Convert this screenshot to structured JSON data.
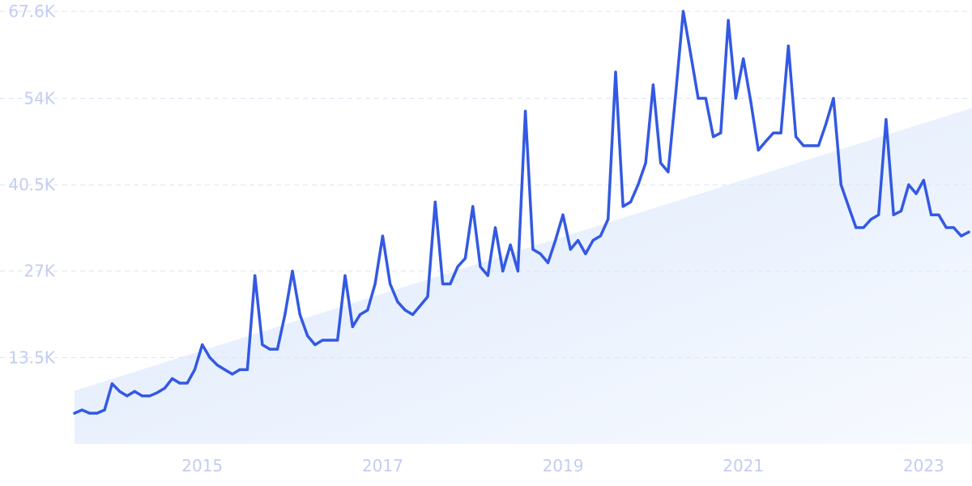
{
  "colors": {
    "line": "#3359e3",
    "grid": "#dde3f4",
    "tick_text": "#c3cdf0",
    "trend_fill_top": "#dce8fb",
    "trend_fill_bottom": "#f7faff"
  },
  "chart_data": {
    "type": "line",
    "title": "",
    "xlabel": "",
    "ylabel": "",
    "grid": "horizontal dashed",
    "legend": "none",
    "y_ticks": [
      "13.5K",
      "27K",
      "40.5K",
      "54K",
      "67.6K"
    ],
    "y_tick_values": [
      13500,
      27000,
      40500,
      54000,
      67600
    ],
    "ylim": [
      0,
      67600
    ],
    "x_ticks": [
      "2015",
      "2017",
      "2019",
      "2021",
      "2023"
    ],
    "x_tick_values": [
      "2015-01",
      "2017-01",
      "2019-01",
      "2021-01",
      "2023-01"
    ],
    "xlim": [
      "2013-08",
      "2023-05"
    ],
    "trend": {
      "start": [
        "2013-08",
        8300
      ],
      "end": [
        "2023-05",
        52500
      ]
    },
    "series": [
      {
        "values": [
          [
            "2013-08",
            4800
          ],
          [
            "2013-09",
            5300
          ],
          [
            "2013-10",
            4800
          ],
          [
            "2013-11",
            4800
          ],
          [
            "2013-12",
            5300
          ],
          [
            "2014-01",
            9400
          ],
          [
            "2014-02",
            8200
          ],
          [
            "2014-03",
            7500
          ],
          [
            "2014-04",
            8200
          ],
          [
            "2014-05",
            7500
          ],
          [
            "2014-06",
            7500
          ],
          [
            "2014-07",
            8000
          ],
          [
            "2014-08",
            8700
          ],
          [
            "2014-09",
            10200
          ],
          [
            "2014-10",
            9500
          ],
          [
            "2014-11",
            9500
          ],
          [
            "2014-12",
            11600
          ],
          [
            "2015-01",
            15500
          ],
          [
            "2015-02",
            13500
          ],
          [
            "2015-03",
            12300
          ],
          [
            "2015-04",
            11600
          ],
          [
            "2015-05",
            10900
          ],
          [
            "2015-06",
            11600
          ],
          [
            "2015-07",
            11600
          ],
          [
            "2015-08",
            26300
          ],
          [
            "2015-09",
            15500
          ],
          [
            "2015-10",
            14800
          ],
          [
            "2015-11",
            14800
          ],
          [
            "2015-12",
            20200
          ],
          [
            "2016-01",
            27000
          ],
          [
            "2016-02",
            20200
          ],
          [
            "2016-03",
            16900
          ],
          [
            "2016-04",
            15500
          ],
          [
            "2016-05",
            16200
          ],
          [
            "2016-06",
            16200
          ],
          [
            "2016-07",
            16200
          ],
          [
            "2016-08",
            26300
          ],
          [
            "2016-09",
            18300
          ],
          [
            "2016-10",
            20200
          ],
          [
            "2016-11",
            20900
          ],
          [
            "2016-12",
            25000
          ],
          [
            "2017-01",
            32500
          ],
          [
            "2017-02",
            25000
          ],
          [
            "2017-03",
            22200
          ],
          [
            "2017-04",
            20900
          ],
          [
            "2017-05",
            20200
          ],
          [
            "2017-06",
            21600
          ],
          [
            "2017-07",
            23000
          ],
          [
            "2017-08",
            37800
          ],
          [
            "2017-09",
            25000
          ],
          [
            "2017-10",
            25000
          ],
          [
            "2017-11",
            27700
          ],
          [
            "2017-12",
            29000
          ],
          [
            "2018-01",
            37100
          ],
          [
            "2018-02",
            27700
          ],
          [
            "2018-03",
            26300
          ],
          [
            "2018-04",
            33800
          ],
          [
            "2018-05",
            27000
          ],
          [
            "2018-06",
            31100
          ],
          [
            "2018-07",
            27000
          ],
          [
            "2018-08",
            52000
          ],
          [
            "2018-09",
            30400
          ],
          [
            "2018-10",
            29700
          ],
          [
            "2018-11",
            28300
          ],
          [
            "2018-12",
            31800
          ],
          [
            "2019-01",
            35800
          ],
          [
            "2019-02",
            30400
          ],
          [
            "2019-03",
            31800
          ],
          [
            "2019-04",
            29700
          ],
          [
            "2019-05",
            31800
          ],
          [
            "2019-06",
            32500
          ],
          [
            "2019-07",
            35100
          ],
          [
            "2019-08",
            58100
          ],
          [
            "2019-09",
            37100
          ],
          [
            "2019-10",
            37800
          ],
          [
            "2019-11",
            40500
          ],
          [
            "2019-12",
            43900
          ],
          [
            "2020-01",
            56100
          ],
          [
            "2020-02",
            43900
          ],
          [
            "2020-03",
            42500
          ],
          [
            "2020-04",
            54700
          ],
          [
            "2020-05",
            67600
          ],
          [
            "2020-06",
            60900
          ],
          [
            "2020-07",
            54000
          ],
          [
            "2020-08",
            54000
          ],
          [
            "2020-09",
            48000
          ],
          [
            "2020-10",
            48600
          ],
          [
            "2020-11",
            66200
          ],
          [
            "2020-12",
            54000
          ],
          [
            "2021-01",
            60200
          ],
          [
            "2021-02",
            53400
          ],
          [
            "2021-03",
            45900
          ],
          [
            "2021-04",
            47300
          ],
          [
            "2021-05",
            48600
          ],
          [
            "2021-06",
            48600
          ],
          [
            "2021-07",
            62200
          ],
          [
            "2021-08",
            48000
          ],
          [
            "2021-09",
            46600
          ],
          [
            "2021-10",
            46600
          ],
          [
            "2021-11",
            46600
          ],
          [
            "2021-12",
            50000
          ],
          [
            "2022-01",
            54000
          ],
          [
            "2022-02",
            40500
          ],
          [
            "2022-03",
            37100
          ],
          [
            "2022-04",
            33800
          ],
          [
            "2022-05",
            33800
          ],
          [
            "2022-06",
            35100
          ],
          [
            "2022-07",
            35800
          ],
          [
            "2022-08",
            50700
          ],
          [
            "2022-09",
            35800
          ],
          [
            "2022-10",
            36400
          ],
          [
            "2022-11",
            40500
          ],
          [
            "2022-12",
            39100
          ],
          [
            "2023-01",
            41200
          ],
          [
            "2023-02",
            35800
          ],
          [
            "2023-03",
            35800
          ],
          [
            "2023-04",
            33800
          ],
          [
            "2023-05",
            33800
          ],
          [
            "2023-06",
            32500
          ],
          [
            "2023-07",
            33100
          ]
        ]
      }
    ]
  }
}
